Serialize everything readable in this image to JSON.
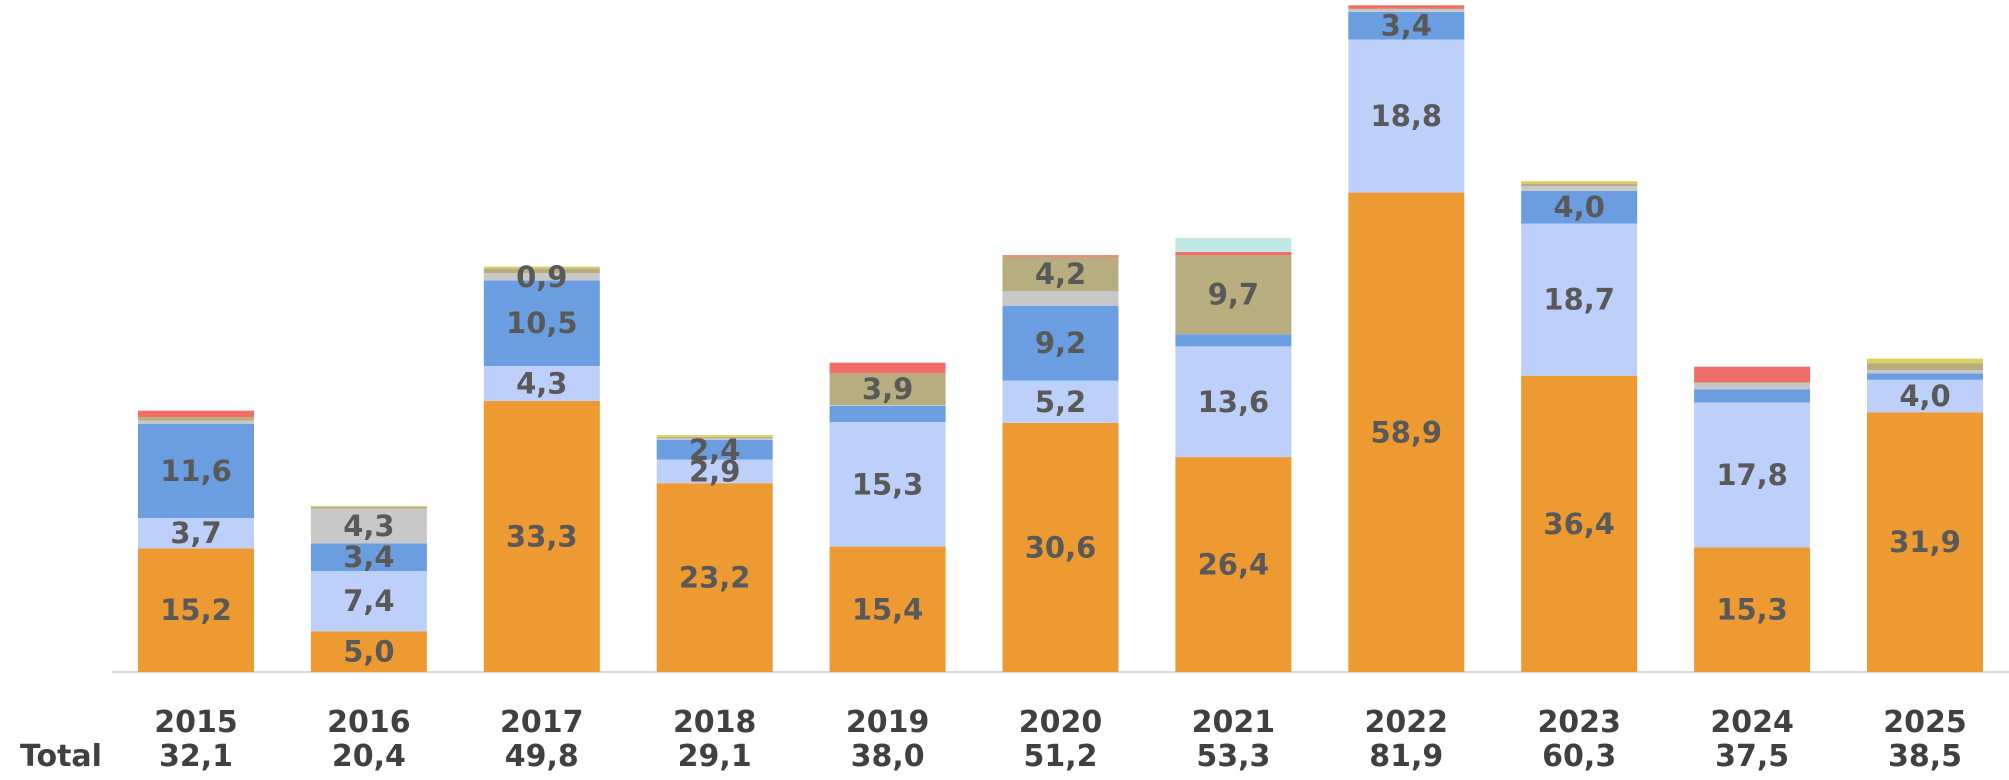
{
  "chart_data": {
    "type": "bar",
    "stacked": true,
    "title": "",
    "xlabel": "",
    "ylabel": "",
    "grid": false,
    "legend": "none",
    "ylim": [
      0,
      82
    ],
    "total_caption": "Total",
    "categories": [
      "2015",
      "2016",
      "2017",
      "2018",
      "2019",
      "2020",
      "2021",
      "2022",
      "2023",
      "2024",
      "2025"
    ],
    "totals": [
      "32,1",
      "20,4",
      "49,8",
      "29,1",
      "38,0",
      "51,2",
      "53,3",
      "81,9",
      "60,3",
      "37,5",
      "38,5"
    ],
    "colors": {
      "s1": "#ED9A33",
      "s2": "#BDD0FA",
      "s3": "#6A9EE0",
      "s4": "#C8C8C8",
      "s5": "#B8AD7E",
      "s6": "#F06E6A",
      "s7": "#BFE7E3",
      "s8": "#D9CF62"
    },
    "series": [
      {
        "name": "s1",
        "values": [
          15.2,
          5.0,
          33.3,
          23.2,
          15.4,
          30.6,
          26.4,
          58.9,
          36.4,
          15.3,
          31.9
        ],
        "labels": [
          "15,2",
          "5,0",
          "33,3",
          "23,2",
          "15,4",
          "30,6",
          "26,4",
          "58,9",
          "36,4",
          "15,3",
          "31,9"
        ]
      },
      {
        "name": "s2",
        "values": [
          3.7,
          7.4,
          4.3,
          2.9,
          15.3,
          5.2,
          13.6,
          18.8,
          18.7,
          17.8,
          4.0
        ],
        "labels": [
          "3,7",
          "7,4",
          "4,3",
          "2,9",
          "15,3",
          "5,2",
          "13,6",
          "18,8",
          "18,7",
          "17,8",
          "4,0"
        ]
      },
      {
        "name": "s3",
        "values": [
          11.6,
          3.4,
          10.5,
          2.4,
          2.0,
          9.2,
          1.5,
          3.4,
          4.0,
          1.6,
          0.8
        ],
        "labels": [
          "11,6",
          "3,4",
          "10,5",
          "2,4",
          "",
          "9,2",
          "",
          "3,4",
          "4,0",
          "",
          ""
        ]
      },
      {
        "name": "s4",
        "values": [
          0.4,
          4.3,
          0.9,
          0.2,
          0.1,
          1.8,
          0.0,
          0.3,
          0.6,
          0.8,
          0.4
        ],
        "labels": [
          "",
          "4,3",
          "0,9",
          "",
          "",
          "",
          "",
          "",
          "",
          "",
          ""
        ]
      },
      {
        "name": "s5",
        "values": [
          0.4,
          0.2,
          0.6,
          0.2,
          3.9,
          4.2,
          9.7,
          0.1,
          0.3,
          0.1,
          0.8
        ],
        "labels": [
          "",
          "",
          "",
          "",
          "3,9",
          "4,2",
          "9,7",
          "",
          "",
          "",
          ""
        ]
      },
      {
        "name": "s6",
        "values": [
          0.8,
          0.0,
          0.0,
          0.0,
          1.3,
          0.2,
          0.4,
          0.4,
          0.0,
          1.9,
          0.0
        ],
        "labels": [
          "",
          "",
          "",
          "",
          "",
          "",
          "",
          "",
          "",
          "",
          ""
        ]
      },
      {
        "name": "s7",
        "values": [
          0.0,
          0.0,
          0.0,
          0.0,
          0.0,
          0.0,
          1.7,
          0.0,
          0.0,
          0.0,
          0.0
        ],
        "labels": [
          "",
          "",
          "",
          "",
          "",
          "",
          "",
          "",
          "",
          "",
          ""
        ]
      },
      {
        "name": "s8",
        "values": [
          0.0,
          0.1,
          0.2,
          0.2,
          0.0,
          0.0,
          0.0,
          0.0,
          0.3,
          0.0,
          0.6
        ],
        "labels": [
          "",
          "",
          "",
          "",
          "",
          "",
          "",
          "",
          "",
          "",
          ""
        ]
      }
    ]
  }
}
